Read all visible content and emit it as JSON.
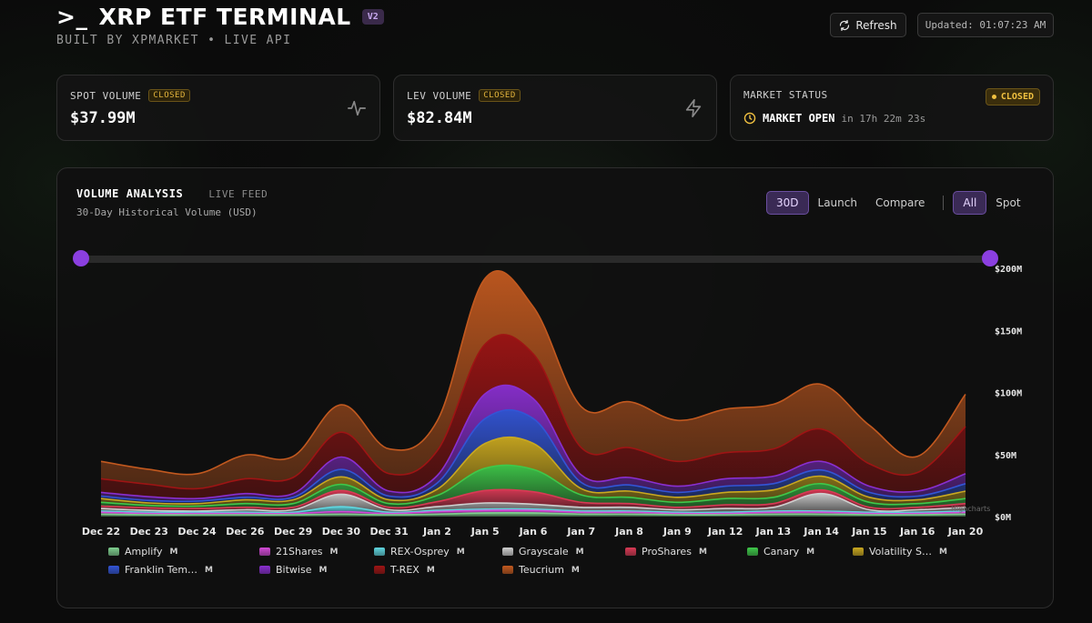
{
  "header": {
    "prompt_symbol": ">_",
    "title": "XRP ETF TERMINAL",
    "version_badge": "V2",
    "subtitle": "BUILT BY XPMARKET • LIVE API",
    "refresh_label": "Refresh",
    "updated_text": "Updated: 01:07:23 AM"
  },
  "cards": {
    "spot": {
      "label": "SPOT VOLUME",
      "badge": "CLOSED",
      "value": "$37.99M",
      "icon": "activity-pulse-icon"
    },
    "lev": {
      "label": "LEV VOLUME",
      "badge": "CLOSED",
      "value": "$82.84M",
      "icon": "lightning-icon"
    },
    "market": {
      "label": "MARKET STATUS",
      "badge": "CLOSED",
      "status": "MARKET OPEN",
      "countdown": "in 17h 22m 23s",
      "icon": "clock-icon",
      "badge_color": "#f0c040"
    }
  },
  "chart_panel": {
    "title": "VOLUME ANALYSIS",
    "feed_label": "LIVE FEED",
    "subtitle": "30-Day Historical Volume (USD)",
    "range_tabs": [
      {
        "label": "30D",
        "active": true
      },
      {
        "label": "Launch",
        "active": false
      },
      {
        "label": "Compare",
        "active": false
      }
    ],
    "mode_tabs": [
      {
        "label": "All",
        "active": true
      },
      {
        "label": "Spot",
        "active": false
      }
    ],
    "watermark": "Highcharts"
  },
  "chart_data": {
    "type": "area",
    "stacked": true,
    "categories": [
      "Dec 22",
      "Dec 23",
      "Dec 24",
      "Dec 26",
      "Dec 29",
      "Dec 30",
      "Dec 31",
      "Jan 2",
      "Jan 5",
      "Jan 6",
      "Jan 7",
      "Jan 8",
      "Jan 9",
      "Jan 12",
      "Jan 13",
      "Jan 14",
      "Jan 15",
      "Jan 16",
      "Jan 20"
    ],
    "y_ticks": [
      "$0M",
      "$50M",
      "$100M",
      "$150M",
      "$200M"
    ],
    "ylim": [
      0,
      200
    ],
    "y_unit": "M",
    "legend_placement": "bottom",
    "series": [
      {
        "name": "Amplify",
        "color": "#7fcf8f",
        "values": [
          2,
          1.5,
          1.5,
          1.5,
          1.5,
          2,
          1.5,
          2,
          3,
          3,
          2,
          2,
          1.5,
          1.5,
          2,
          2,
          1.5,
          1.5,
          2
        ]
      },
      {
        "name": "21Shares",
        "color": "#d24ad6",
        "values": [
          1.5,
          1,
          1,
          1,
          1,
          2,
          1,
          2,
          2,
          2,
          1.5,
          1.5,
          1,
          1,
          1.5,
          1.5,
          1,
          1,
          1.5
        ]
      },
      {
        "name": "REX-Osprey",
        "color": "#5fd6e0",
        "values": [
          1,
          1,
          1,
          1,
          1,
          4,
          1,
          1,
          1,
          1,
          1,
          1,
          1,
          1,
          1,
          1,
          1,
          1,
          1
        ]
      },
      {
        "name": "Grayscale",
        "color": "#cfcfcf",
        "values": [
          2,
          1.5,
          1,
          2,
          2,
          10,
          2,
          3,
          5,
          4,
          3,
          3,
          2,
          3,
          3,
          14,
          2,
          2,
          3
        ]
      },
      {
        "name": "ProShares",
        "color": "#d93a55",
        "values": [
          2,
          2,
          2,
          2,
          2,
          3,
          2,
          4,
          10,
          10,
          4,
          3,
          2,
          3,
          3,
          3,
          2,
          2,
          3
        ]
      },
      {
        "name": "Canary",
        "color": "#3fc84a",
        "values": [
          3,
          2,
          2,
          3,
          3,
          5,
          3,
          5,
          18,
          18,
          6,
          5,
          4,
          5,
          5,
          5,
          4,
          3,
          4
        ]
      },
      {
        "name": "Volatility S…",
        "color": "#c9a820",
        "values": [
          3,
          2,
          2,
          3,
          3,
          6,
          3,
          5,
          20,
          21,
          5,
          5,
          4,
          5,
          6,
          6,
          4,
          3,
          6
        ]
      },
      {
        "name": "Franklin Tem…",
        "color": "#3355d6",
        "values": [
          2,
          2,
          2,
          2,
          2,
          6,
          3,
          5,
          20,
          20,
          5,
          5,
          4,
          5,
          5,
          5,
          4,
          3,
          6
        ]
      },
      {
        "name": "Bitwise",
        "color": "#8a2fd0",
        "values": [
          3,
          3,
          2,
          3,
          3,
          10,
          4,
          6,
          20,
          16,
          6,
          6,
          5,
          6,
          6,
          7,
          5,
          4,
          8
        ]
      },
      {
        "name": "T-REX",
        "color": "#9e1414",
        "values": [
          11,
          10,
          8,
          12,
          13,
          20,
          14,
          20,
          40,
          36,
          22,
          24,
          20,
          21,
          22,
          26,
          18,
          15,
          38
        ]
      },
      {
        "name": "Teucrium",
        "color": "#c2591f",
        "values": [
          14,
          12,
          12,
          19,
          17,
          22,
          20,
          24,
          53,
          38,
          33,
          37,
          33,
          35,
          36,
          36,
          31,
          13,
          26
        ]
      }
    ]
  }
}
